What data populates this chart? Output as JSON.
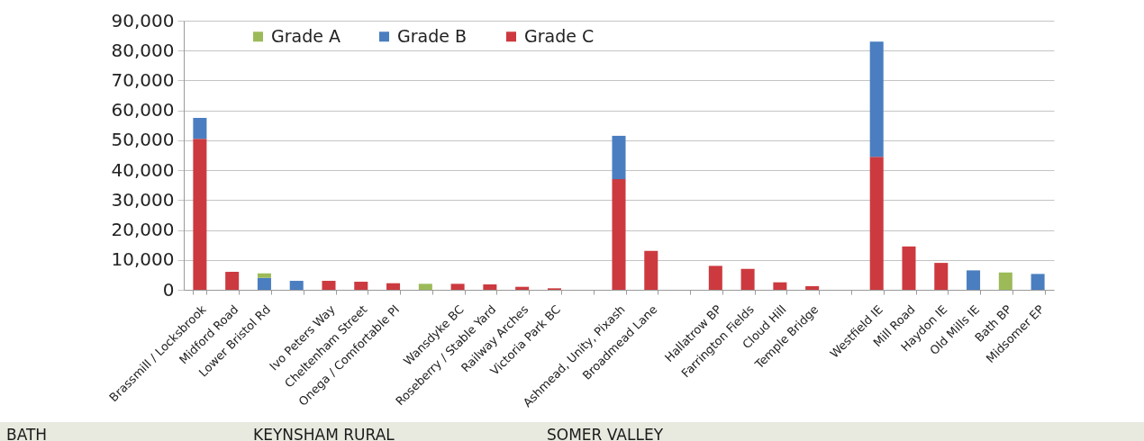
{
  "chart_data": {
    "type": "bar",
    "stacked": true,
    "categories": [
      "Brassmill / Locksbrook",
      "Midford Road",
      "Lower Bristol Rd",
      null,
      "Ivo Peters Way",
      "Cheltenham Street",
      "Onega / Comfortable Pl",
      null,
      "Wansdyke BC",
      "Roseberry / Stable Yard",
      "Railway Arches",
      "Victoria Park BC",
      null,
      "Ashmead, Unity, Pixash",
      "Broadmead Lane",
      null,
      "Hallatrow BP",
      "Farrington Fields",
      "Cloud Hill",
      "Temple Bridge",
      null,
      "Westfield IE",
      "Mill Road",
      "Haydon IE",
      "Old Mills IE",
      "Bath BP",
      "Midsomer EP"
    ],
    "series": [
      {
        "name": "Grade C",
        "color": "#cc3a3f",
        "values": [
          50500,
          6000,
          null,
          null,
          3000,
          2700,
          2200,
          null,
          2000,
          1800,
          1000,
          500,
          null,
          37000,
          13000,
          null,
          8000,
          7000,
          2500,
          1200,
          null,
          44500,
          14500,
          9000,
          null,
          null,
          null
        ]
      },
      {
        "name": "Grade B",
        "color": "#4a7ec0",
        "values": [
          7000,
          null,
          4000,
          3000,
          null,
          null,
          null,
          null,
          null,
          null,
          null,
          null,
          null,
          14500,
          null,
          null,
          null,
          null,
          null,
          null,
          null,
          38500,
          null,
          null,
          6500,
          null,
          5300
        ]
      },
      {
        "name": "Grade A",
        "color": "#9cbb58",
        "values": [
          null,
          null,
          1500,
          null,
          null,
          null,
          null,
          2000,
          null,
          null,
          null,
          null,
          null,
          null,
          null,
          null,
          null,
          null,
          null,
          null,
          null,
          null,
          null,
          null,
          null,
          5800,
          null
        ]
      }
    ],
    "ylim": [
      0,
      90000
    ],
    "yticks": [
      {
        "value": 0,
        "label": "0"
      },
      {
        "value": 10000,
        "label": "10,000"
      },
      {
        "value": 20000,
        "label": "20,000"
      },
      {
        "value": 30000,
        "label": "30,000"
      },
      {
        "value": 40000,
        "label": "40,000"
      },
      {
        "value": 50000,
        "label": "50,000"
      },
      {
        "value": 60000,
        "label": "60,000"
      },
      {
        "value": 70000,
        "label": "70,000"
      },
      {
        "value": 80000,
        "label": "80,000"
      },
      {
        "value": 90000,
        "label": "90,000"
      }
    ],
    "grid": "y",
    "legend": "top left",
    "annotations": [
      "BATH",
      "KEYNSHAM RURAL",
      "SOMER VALLEY"
    ]
  }
}
